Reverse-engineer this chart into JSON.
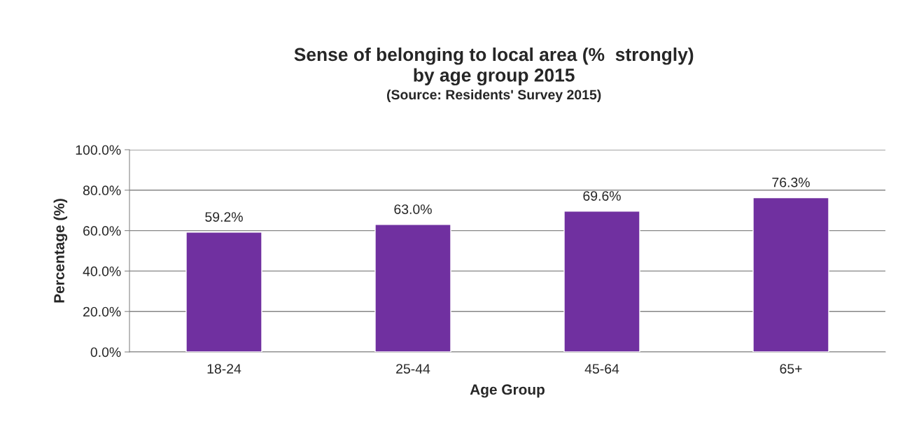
{
  "chart_data": {
    "type": "bar",
    "title": "Sense of belonging to local area (%  strongly)\nby age group 2015",
    "subtitle": "(Source: Residents' Survey 2015)",
    "xlabel": "Age Group",
    "ylabel": "Percentage (%)",
    "categories": [
      "18-24",
      "25-44",
      "45-64",
      "65+"
    ],
    "values": [
      59.2,
      63.0,
      69.6,
      76.3
    ],
    "value_labels": [
      "59.2%",
      "63.0%",
      "69.6%",
      "76.3%"
    ],
    "color": "#7030a0",
    "ylim": [
      0,
      100
    ],
    "yticks": [
      {
        "value": 0,
        "label": "0.0%"
      },
      {
        "value": 20,
        "label": "20.0%"
      },
      {
        "value": 40,
        "label": "40.0%"
      },
      {
        "value": 60,
        "label": "60.0%"
      },
      {
        "value": 80,
        "label": "80.0%"
      },
      {
        "value": 100,
        "label": "100.0%"
      }
    ],
    "grid": "y",
    "legend": false
  }
}
